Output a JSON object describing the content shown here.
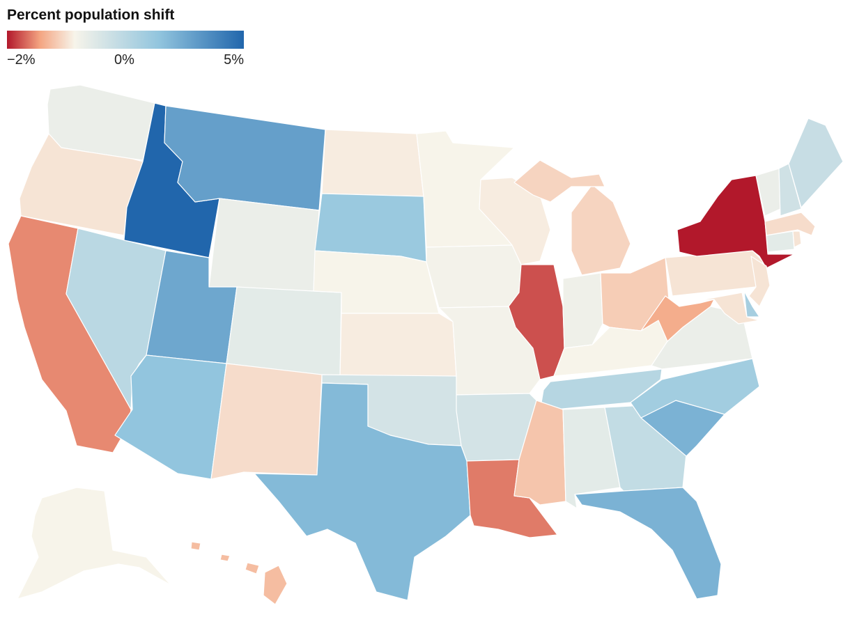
{
  "legend": {
    "title": "Percent population shift",
    "min_label": "−2%",
    "mid_label": "0%",
    "max_label": "5%",
    "domain": [
      -2,
      0,
      5
    ],
    "colors": [
      "#b2182b",
      "#f4a582",
      "#f7f4ea",
      "#92c5de",
      "#2166ac"
    ]
  },
  "chart_data": {
    "type": "choropleth",
    "title": "Percent population shift",
    "scale": {
      "min": -2,
      "mid": 0,
      "max": 5,
      "palette": "red-white-blue diverging"
    },
    "regions": [
      {
        "name": "Washington",
        "value": 0.3
      },
      {
        "name": "Oregon",
        "value": -0.2
      },
      {
        "name": "California",
        "value": -1.2
      },
      {
        "name": "Nevada",
        "value": 1.5
      },
      {
        "name": "Idaho",
        "value": 5.0
      },
      {
        "name": "Montana",
        "value": 3.5
      },
      {
        "name": "Wyoming",
        "value": 0.3
      },
      {
        "name": "Utah",
        "value": 3.3
      },
      {
        "name": "Arizona",
        "value": 2.5
      },
      {
        "name": "Colorado",
        "value": 0.5
      },
      {
        "name": "New Mexico",
        "value": -0.3
      },
      {
        "name": "North Dakota",
        "value": -0.1
      },
      {
        "name": "South Dakota",
        "value": 2.3
      },
      {
        "name": "Nebraska",
        "value": 0.0
      },
      {
        "name": "Kansas",
        "value": -0.1
      },
      {
        "name": "Oklahoma",
        "value": 0.9
      },
      {
        "name": "Texas",
        "value": 2.8
      },
      {
        "name": "Minnesota",
        "value": 0.0
      },
      {
        "name": "Iowa",
        "value": 0.1
      },
      {
        "name": "Missouri",
        "value": 0.1
      },
      {
        "name": "Arkansas",
        "value": 0.9
      },
      {
        "name": "Louisiana",
        "value": -1.3
      },
      {
        "name": "Wisconsin",
        "value": -0.1
      },
      {
        "name": "Illinois",
        "value": -1.6
      },
      {
        "name": "Michigan",
        "value": -0.4
      },
      {
        "name": "Indiana",
        "value": 0.2
      },
      {
        "name": "Ohio",
        "value": -0.5
      },
      {
        "name": "Kentucky",
        "value": 0.0
      },
      {
        "name": "Tennessee",
        "value": 1.6
      },
      {
        "name": "Mississippi",
        "value": -0.6
      },
      {
        "name": "Alabama",
        "value": 0.5
      },
      {
        "name": "Georgia",
        "value": 1.3
      },
      {
        "name": "Florida",
        "value": 3.0
      },
      {
        "name": "South Carolina",
        "value": 3.0
      },
      {
        "name": "North Carolina",
        "value": 2.1
      },
      {
        "name": "Virginia",
        "value": 0.3
      },
      {
        "name": "West Virginia",
        "value": -0.9
      },
      {
        "name": "Pennsylvania",
        "value": -0.2
      },
      {
        "name": "New York",
        "value": -2.0
      },
      {
        "name": "New Jersey",
        "value": -0.2
      },
      {
        "name": "Delaware",
        "value": 2.0
      },
      {
        "name": "Maryland",
        "value": -0.2
      },
      {
        "name": "Vermont",
        "value": 0.3
      },
      {
        "name": "New Hampshire",
        "value": 1.0
      },
      {
        "name": "Maine",
        "value": 1.2
      },
      {
        "name": "Massachusetts",
        "value": -0.3
      },
      {
        "name": "Connecticut",
        "value": 0.5
      },
      {
        "name": "Rhode Island",
        "value": -0.2
      },
      {
        "name": "Alaska",
        "value": 0.0
      },
      {
        "name": "Hawaii",
        "value": -0.7
      }
    ]
  }
}
